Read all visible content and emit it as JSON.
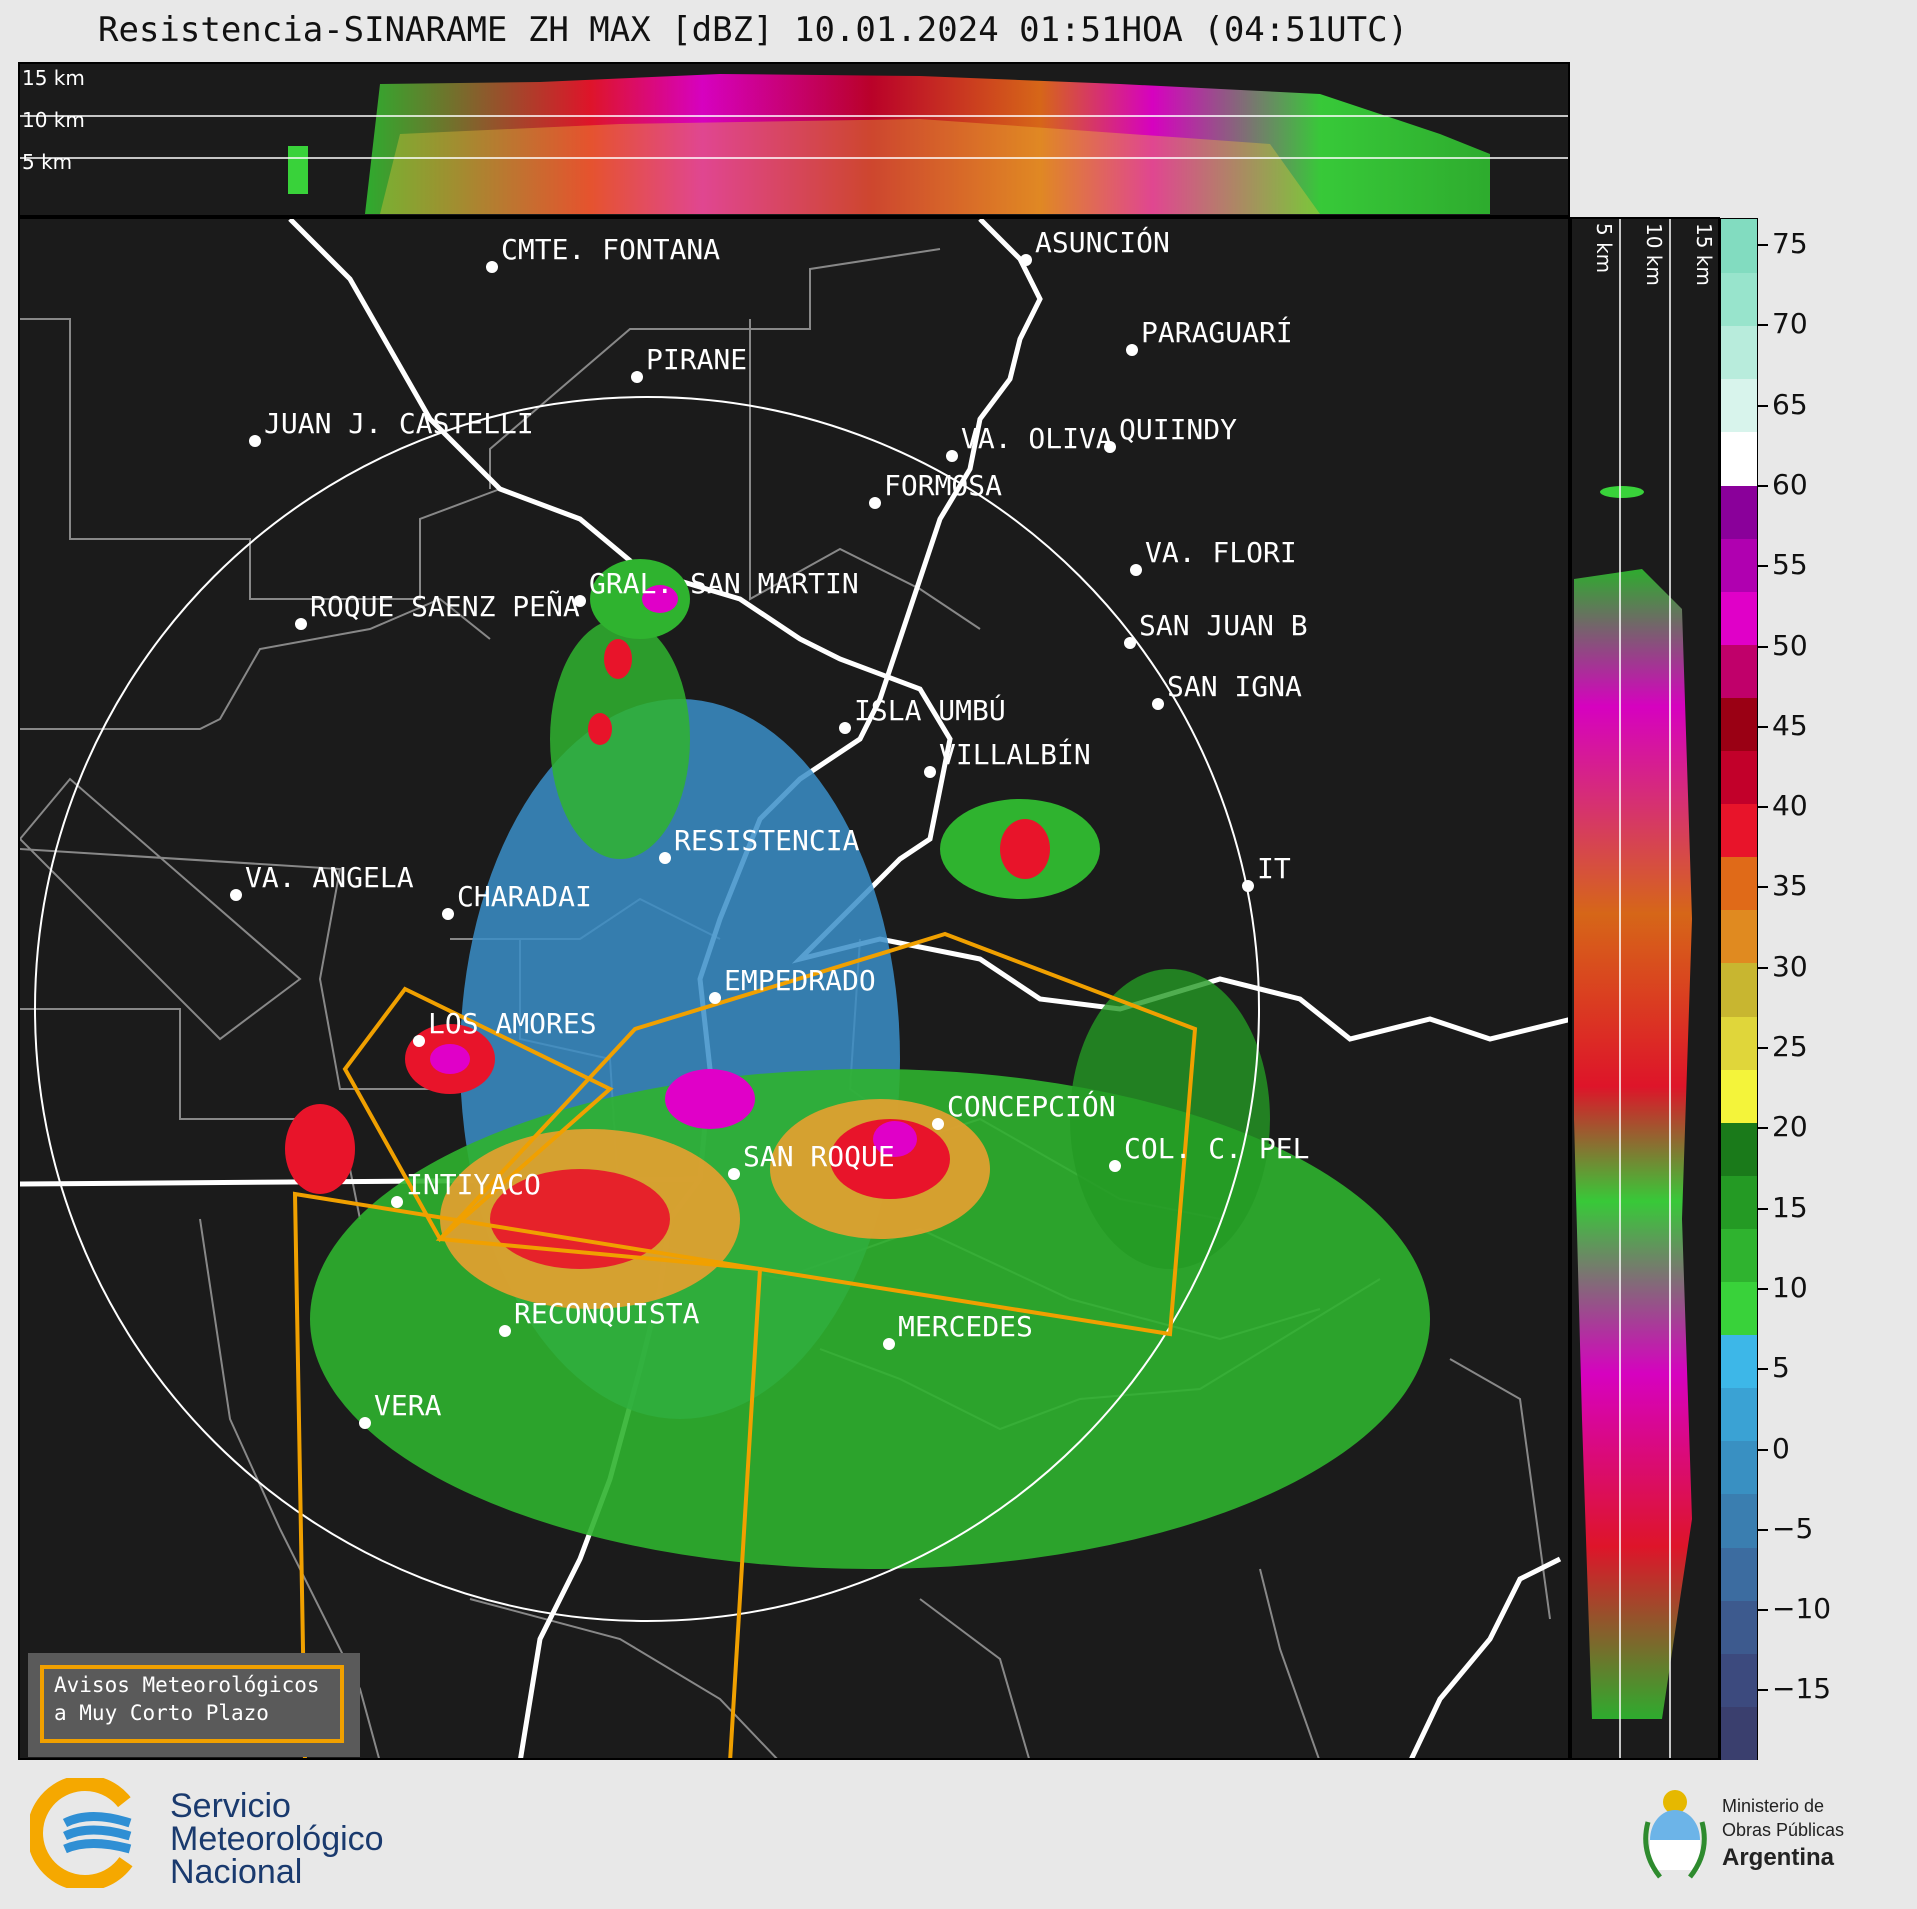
{
  "title": "Resistencia-SINARAME ZH MAX [dBZ] 10.01.2024 01:51HOA (04:51UTC)",
  "height_labels": [
    "15 km",
    "10 km",
    "5 km"
  ],
  "colorbar": {
    "ticks": [
      "75",
      "70",
      "65",
      "60",
      "55",
      "50",
      "45",
      "40",
      "35",
      "30",
      "25",
      "20",
      "15",
      "10",
      "5",
      "0",
      "−5",
      "−10",
      "−15"
    ],
    "colors": [
      "#3a3f6e",
      "#3c4a7e",
      "#3d5a8e",
      "#3c6ca0",
      "#3a7eb0",
      "#3990c2",
      "#3aa2d4",
      "#3db7e8",
      "#39d23a",
      "#2fb32f",
      "#249a24",
      "#1a7a1a",
      "#f4f43a",
      "#e0d63a",
      "#c8b630",
      "#e08a20",
      "#e06a18",
      "#e8142a",
      "#c2002a",
      "#9a0014",
      "#c0006a",
      "#e000c8",
      "#b000b0",
      "#8a009a",
      "#ffffff",
      "#d8f4ec",
      "#b8ecdc",
      "#98e4cc",
      "#82dcc0"
    ]
  },
  "cities": [
    {
      "name": "CMTE. FONTANA"
    },
    {
      "name": "ASUNCIÓN"
    },
    {
      "name": "PARAGUARÍ"
    },
    {
      "name": "PIRANE"
    },
    {
      "name": "JUAN J. CASTELLI"
    },
    {
      "name": "VA. OLIVA"
    },
    {
      "name": "QUIINDY"
    },
    {
      "name": "FORMOSA"
    },
    {
      "name": "VA. FLORI"
    },
    {
      "name": "GRAL. SAN MARTIN"
    },
    {
      "name": "SAN JUAN B"
    },
    {
      "name": "ROQUE SAENZ PEÑA"
    },
    {
      "name": "SAN IGNA"
    },
    {
      "name": "ISLA UMBÚ"
    },
    {
      "name": "VILLALBÍN"
    },
    {
      "name": "RESISTENCIA"
    },
    {
      "name": "VA. ANGELA"
    },
    {
      "name": "CHARADAI"
    },
    {
      "name": "IT"
    },
    {
      "name": "EMPEDRADO"
    },
    {
      "name": "LOS AMORES"
    },
    {
      "name": "CONCEPCIÓN"
    },
    {
      "name": "SAN ROQUE"
    },
    {
      "name": "COL. C. PEL"
    },
    {
      "name": "INTIYACO"
    },
    {
      "name": "RECONQUISTA"
    },
    {
      "name": "MERCEDES"
    },
    {
      "name": "VERA"
    }
  ],
  "legend": {
    "line1": "Avisos Meteorológicos",
    "line2": "a Muy Corto Plazo"
  },
  "smn": {
    "line1": "Servicio",
    "line2": "Meteorológico",
    "line3": "Nacional"
  },
  "ministry": {
    "line1": "Ministerio de",
    "line2": "Obras Públicas",
    "line3": "Argentina"
  }
}
